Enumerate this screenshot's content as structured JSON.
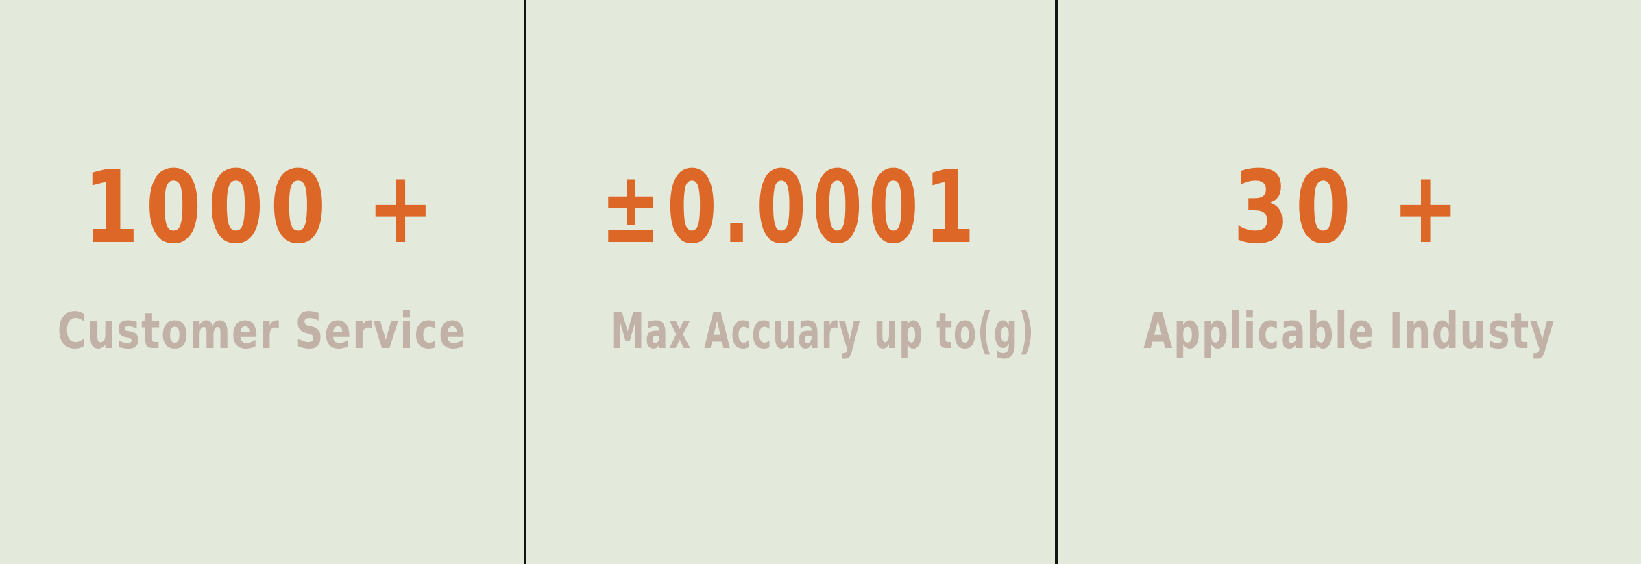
{
  "stats": [
    {
      "value": "1000 +",
      "label": "Customer Service"
    },
    {
      "value": "±0.0001",
      "label": "Max Accuary up to(g)"
    },
    {
      "value": "30 +",
      "label": "Applicable Industy"
    }
  ],
  "colors": {
    "background": "#e4eadb",
    "value_text": "#dc6726",
    "label_text": "#c1b1a6",
    "divider": "#141414"
  }
}
